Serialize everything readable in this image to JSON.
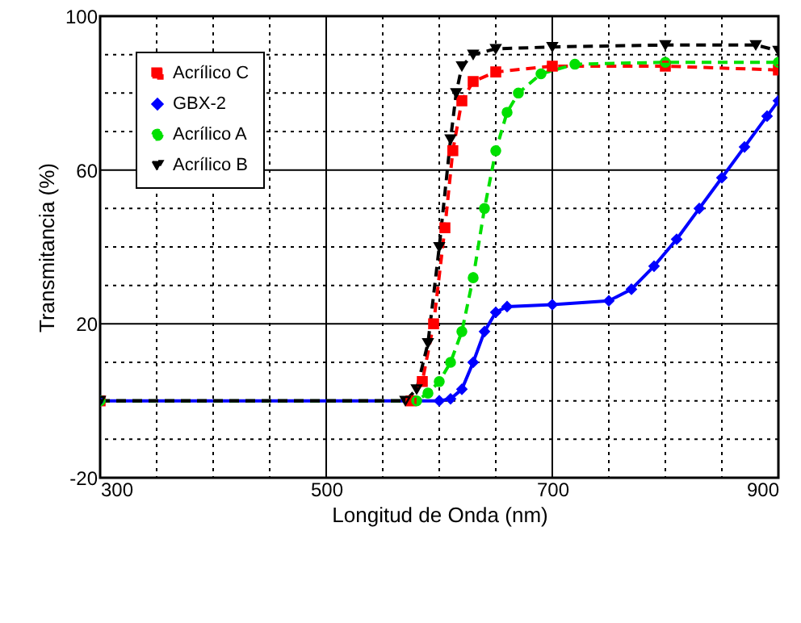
{
  "chart_data": {
    "type": "line",
    "xlabel": "Longitud de Onda (nm)",
    "ylabel": "Transmitancia (%)",
    "xlim": [
      300,
      900
    ],
    "ylim": [
      -20,
      100
    ],
    "xticks": [
      300,
      {
        "value": 350,
        "label": null
      },
      {
        "value": 400,
        "label": null
      },
      {
        "value": 450,
        "label": null
      },
      500,
      {
        "value": 550,
        "label": null
      },
      {
        "value": 600,
        "label": null
      },
      {
        "value": 650,
        "label": null
      },
      700,
      {
        "value": 750,
        "label": null
      },
      {
        "value": 800,
        "label": null
      },
      {
        "value": 850,
        "label": null
      },
      900
    ],
    "yticks": [
      -20,
      {
        "value": -10,
        "label": null
      },
      {
        "value": 0,
        "label": null
      },
      {
        "value": 10,
        "label": null
      },
      20,
      {
        "value": 30,
        "label": null
      },
      {
        "value": 40,
        "label": null
      },
      {
        "value": 50,
        "label": null
      },
      60,
      {
        "value": 70,
        "label": null
      },
      {
        "value": 80,
        "label": null
      },
      {
        "value": 90,
        "label": null
      },
      100
    ],
    "grid": true,
    "legend": "top left",
    "series": [
      {
        "name": "Acrílico C",
        "color": "#ff0000",
        "marker": "square",
        "line_style": "dashed",
        "x": [
          300,
          575,
          585,
          595,
          605,
          612,
          620,
          630,
          650,
          700,
          800,
          900
        ],
        "values": [
          0,
          0,
          5,
          20,
          45,
          65,
          78,
          83,
          85.5,
          87,
          87,
          86
        ]
      },
      {
        "name": "GBX-2",
        "color": "#0000ff",
        "marker": "diamond",
        "line_style": "solid",
        "x": [
          300,
          600,
          610,
          620,
          630,
          640,
          650,
          660,
          700,
          750,
          770,
          790,
          810,
          830,
          850,
          870,
          890,
          900
        ],
        "values": [
          0,
          0,
          0.5,
          3,
          10,
          18,
          23,
          24.5,
          25,
          26,
          29,
          35,
          42,
          50,
          58,
          66,
          74,
          78
        ]
      },
      {
        "name": "Acrílico A",
        "color": "#00e000",
        "marker": "circle",
        "line_style": "dashed",
        "x": [
          300,
          580,
          590,
          600,
          610,
          620,
          630,
          640,
          650,
          660,
          670,
          690,
          720,
          800,
          900
        ],
        "values": [
          0,
          0,
          2,
          5,
          10,
          18,
          32,
          50,
          65,
          75,
          80,
          85,
          87.5,
          88,
          88
        ]
      },
      {
        "name": "Acrílico B",
        "color": "#000000",
        "marker": "triangle",
        "line_style": "dashed",
        "x": [
          300,
          570,
          580,
          590,
          600,
          610,
          615,
          620,
          630,
          650,
          700,
          800,
          880,
          900
        ],
        "values": [
          0,
          0,
          3,
          15,
          40,
          68,
          80,
          87,
          90,
          91.5,
          92,
          92.5,
          92.5,
          91
        ]
      }
    ]
  }
}
